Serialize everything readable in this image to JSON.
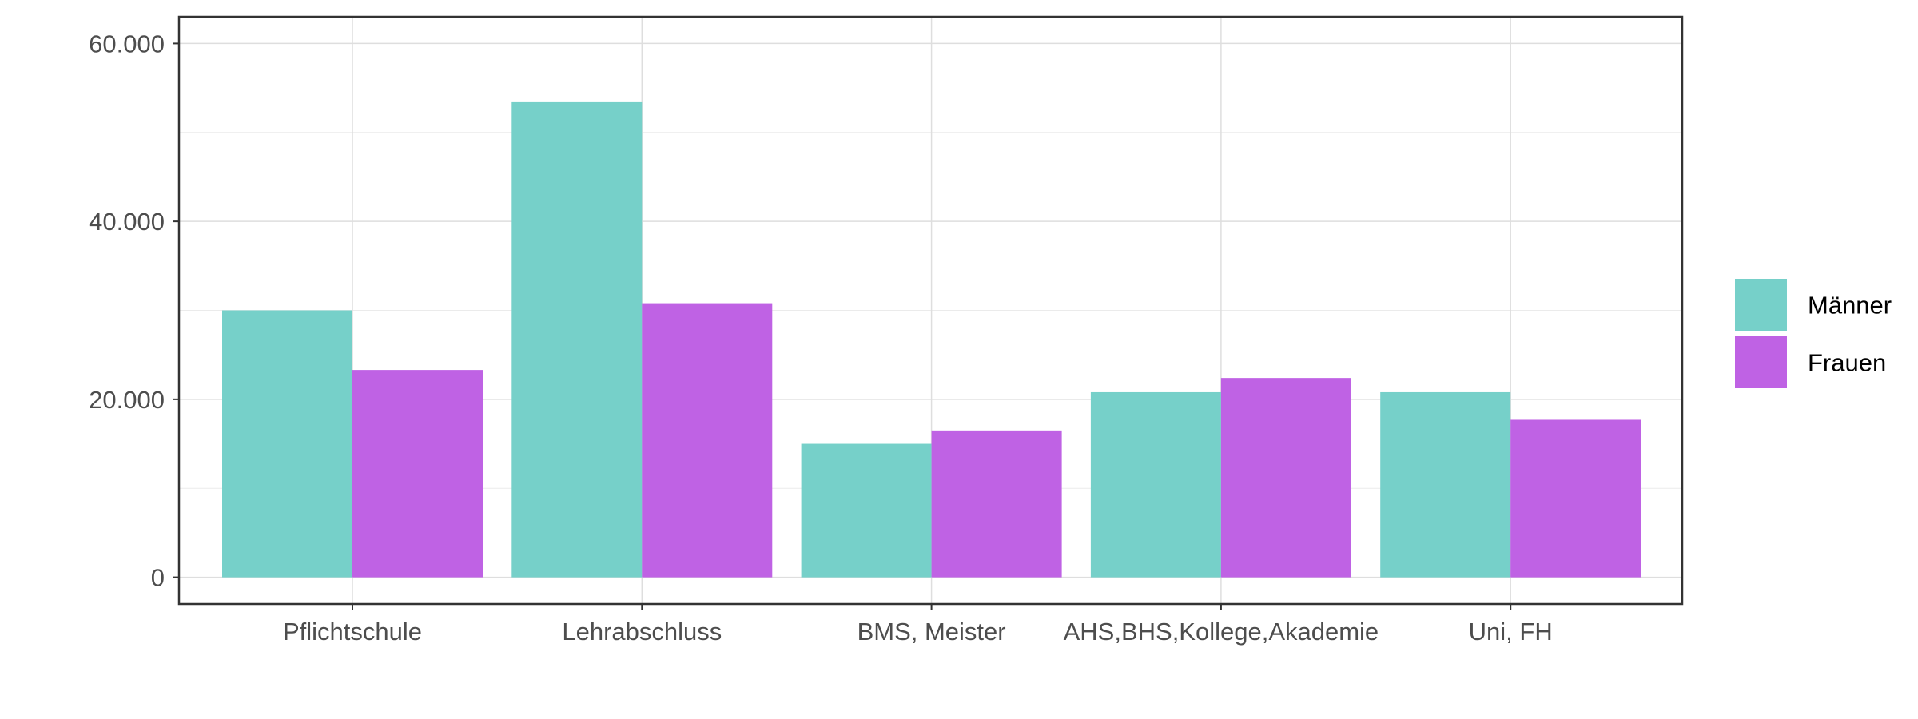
{
  "chart_data": {
    "type": "bar",
    "title": "",
    "xlabel": "",
    "ylabel": "",
    "categories": [
      "Pflichtschule",
      "Lehrabschluss",
      "BMS, Meister",
      "AHS,BHS,Kollege,Akademie",
      "Uni, FH"
    ],
    "series": [
      {
        "name": "Männer",
        "color": "#76d0c9",
        "values": [
          30000,
          53400,
          15000,
          20800,
          20800
        ]
      },
      {
        "name": "Frauen",
        "color": "#bf62e4",
        "values": [
          23300,
          30800,
          16500,
          22400,
          17700
        ]
      }
    ],
    "ylim": [
      -3000,
      63000
    ],
    "yticks": [
      0,
      20000,
      40000,
      60000
    ],
    "ytick_labels": [
      "0",
      "20.000",
      "40.000",
      "60.000"
    ],
    "grid": true,
    "legend_position": "right"
  }
}
